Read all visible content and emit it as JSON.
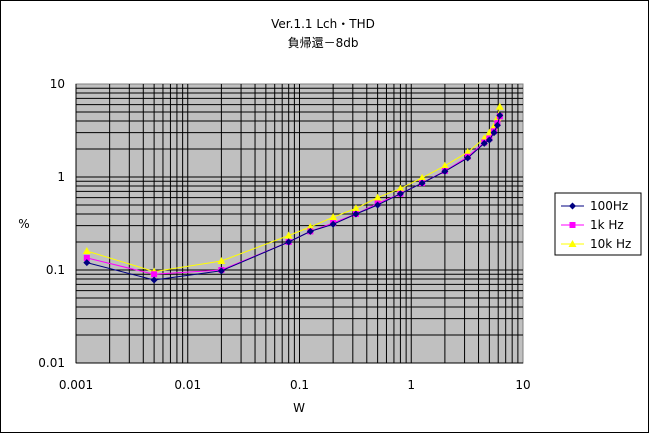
{
  "chart_data": {
    "type": "line",
    "title": "Ver.1.1  Lch・THD",
    "subtitle": "負帰還－8db",
    "xlabel": "W",
    "ylabel": "%",
    "x_scale": "log",
    "y_scale": "log",
    "xlim": [
      0.001,
      10
    ],
    "ylim": [
      0.01,
      10
    ],
    "x_ticks": [
      "0.001",
      "0.01",
      "0.1",
      "1",
      "10"
    ],
    "y_ticks": [
      "0.01",
      "0.1",
      "1",
      "10"
    ],
    "grid": true,
    "legend_position": "right",
    "series": [
      {
        "name": "100Hz",
        "color": "#000080",
        "marker": "diamond",
        "x": [
          0.00125,
          0.005,
          0.02,
          0.08,
          0.125,
          0.2,
          0.32,
          0.5,
          0.8,
          1.25,
          2.0,
          3.2,
          4.5,
          5.0,
          5.5,
          5.9,
          6.2
        ],
        "y": [
          0.12,
          0.078,
          0.098,
          0.2,
          0.26,
          0.31,
          0.4,
          0.5,
          0.66,
          0.86,
          1.15,
          1.6,
          2.3,
          2.5,
          3.0,
          3.6,
          4.6
        ]
      },
      {
        "name": "1k Hz",
        "color": "#ff00ff",
        "marker": "square",
        "x": [
          0.00125,
          0.005,
          0.02,
          0.08,
          0.125,
          0.2,
          0.32,
          0.5,
          0.8,
          1.25,
          2.0,
          3.2,
          4.5,
          5.0,
          5.5,
          5.9,
          6.2
        ],
        "y": [
          0.135,
          0.09,
          0.1,
          0.2,
          0.26,
          0.32,
          0.4,
          0.52,
          0.66,
          0.86,
          1.16,
          1.65,
          2.35,
          2.6,
          3.1,
          3.8,
          4.5
        ]
      },
      {
        "name": "10k Hz",
        "color": "#ffff00",
        "marker": "triangle",
        "x": [
          0.00125,
          0.005,
          0.02,
          0.08,
          0.125,
          0.2,
          0.32,
          0.5,
          0.8,
          1.25,
          2.0,
          3.2,
          4.5,
          5.0,
          5.5,
          5.9,
          6.2
        ],
        "y": [
          0.16,
          0.096,
          0.125,
          0.235,
          0.29,
          0.37,
          0.46,
          0.6,
          0.75,
          0.98,
          1.32,
          1.85,
          2.6,
          3.0,
          3.5,
          4.3,
          5.7
        ]
      }
    ]
  }
}
